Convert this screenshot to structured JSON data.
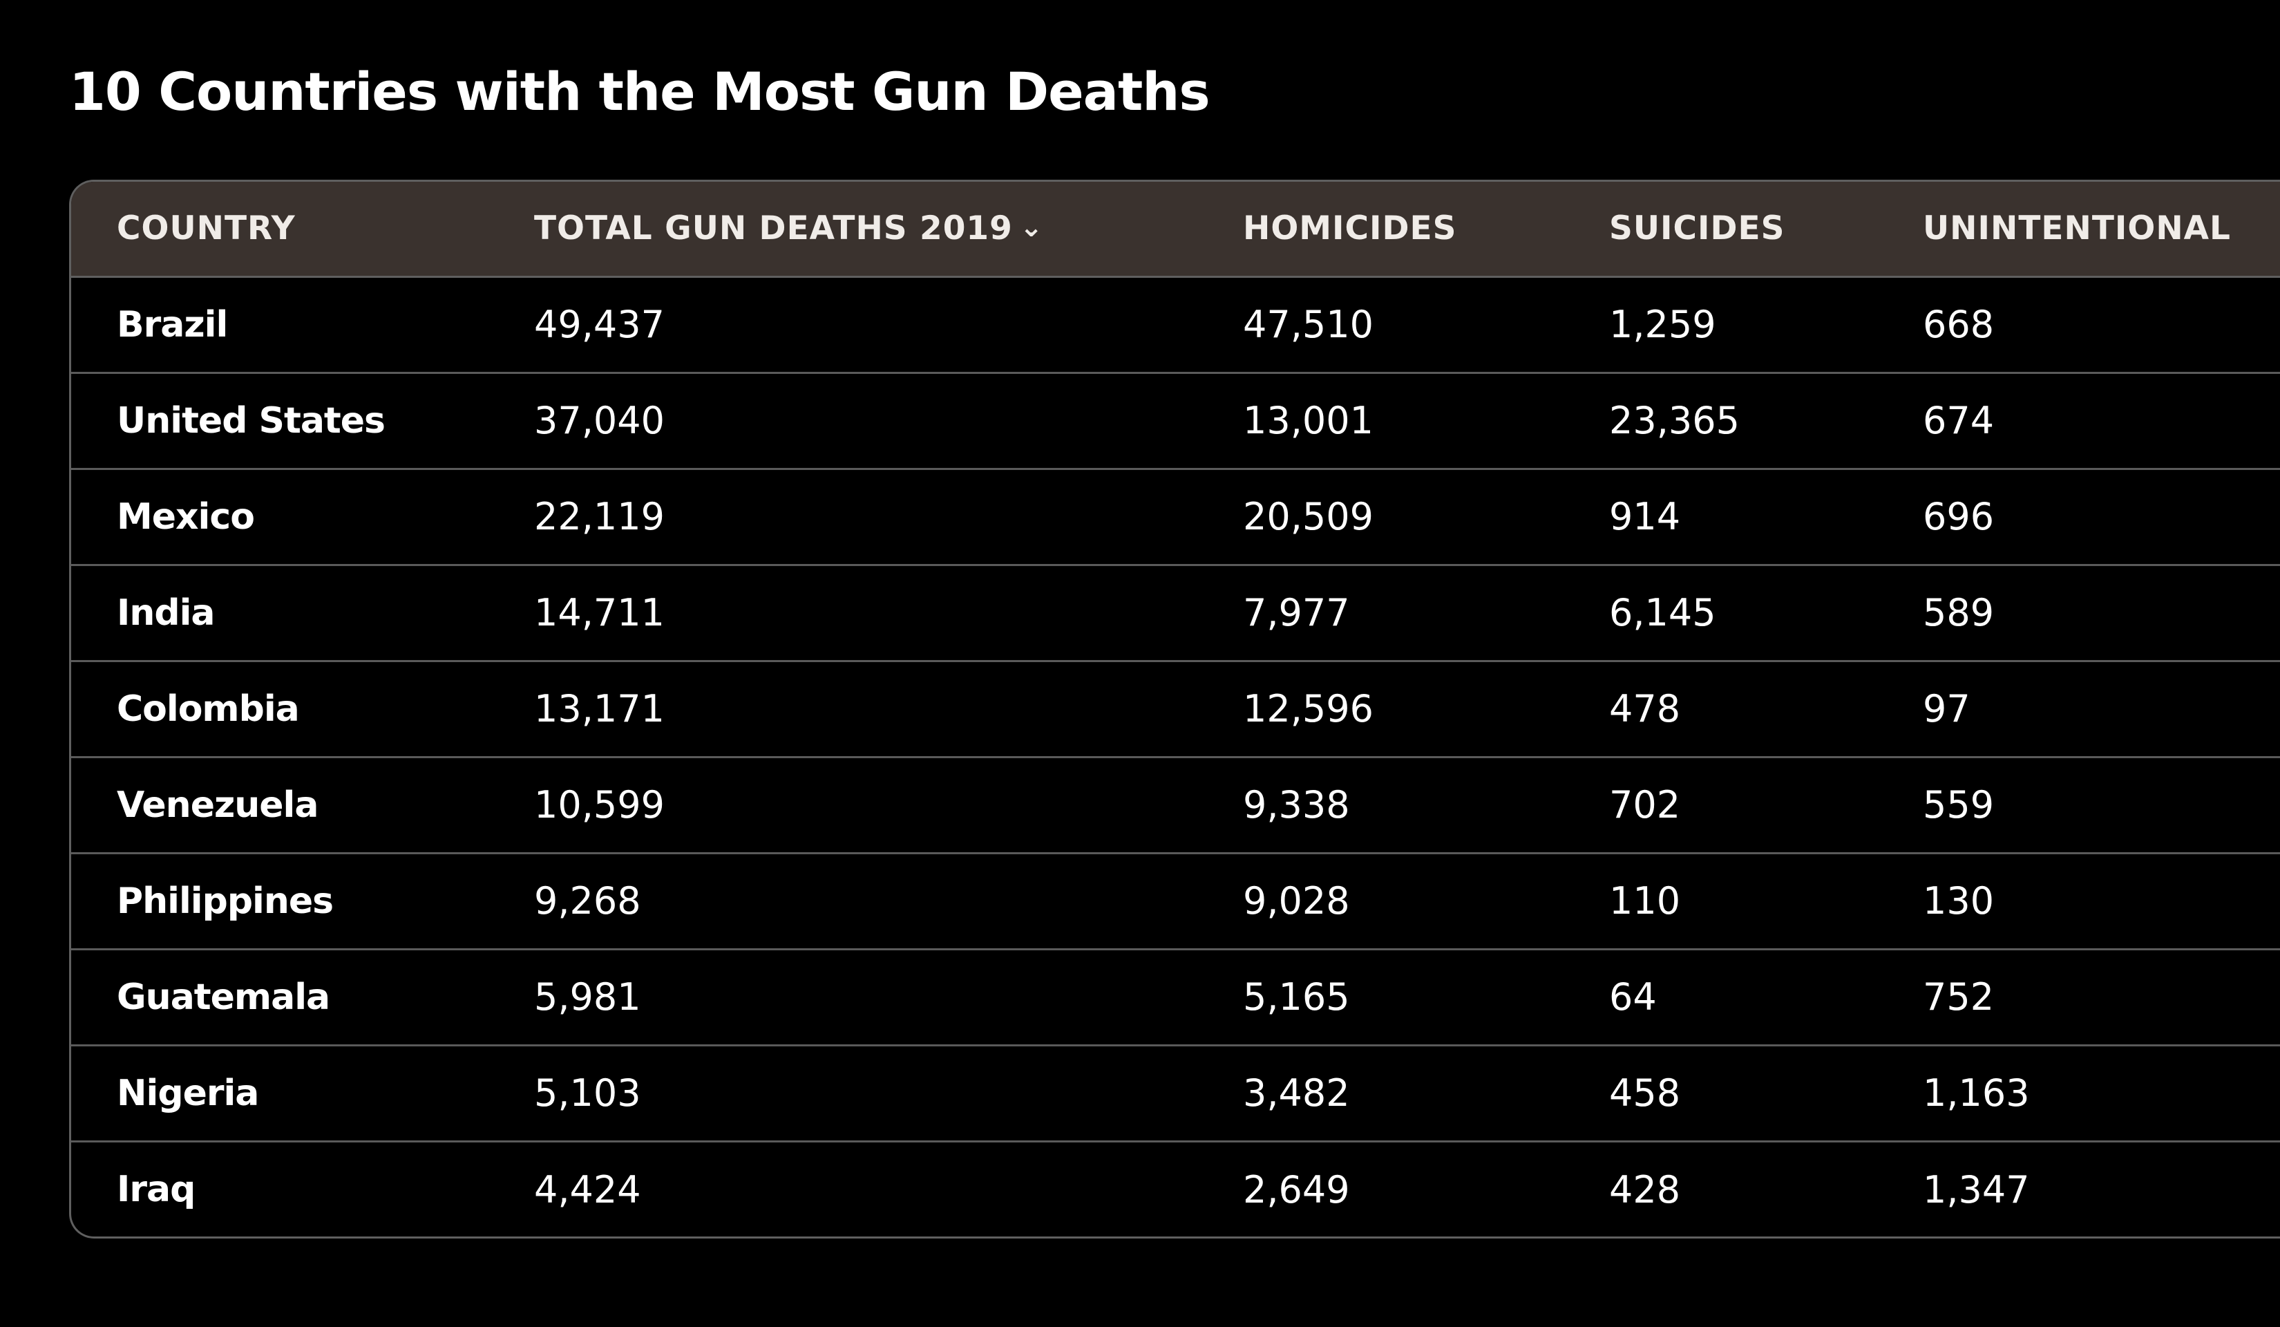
{
  "cut_off_text": "",
  "title": "10 Countries with the Most Gun Deaths",
  "colors": {
    "background": "#000000",
    "header_background": "#3a322e",
    "border": "#5f5f5f",
    "text": "#ffffff"
  },
  "table": {
    "headers": {
      "country": "COUNTRY",
      "total": "TOTAL GUN DEATHS 2019",
      "homicides": "HOMICIDES",
      "suicides": "SUICIDES",
      "unintentional": "UNINTENTIONAL"
    },
    "sort_icon": "chevron-down-icon",
    "rows": [
      {
        "country": "Brazil",
        "total": "49,437",
        "homicides": "47,510",
        "suicides": "1,259",
        "unintentional": "668"
      },
      {
        "country": "United States",
        "total": "37,040",
        "homicides": "13,001",
        "suicides": "23,365",
        "unintentional": "674"
      },
      {
        "country": "Mexico",
        "total": "22,119",
        "homicides": "20,509",
        "suicides": "914",
        "unintentional": "696"
      },
      {
        "country": "India",
        "total": "14,711",
        "homicides": "7,977",
        "suicides": "6,145",
        "unintentional": "589"
      },
      {
        "country": "Colombia",
        "total": "13,171",
        "homicides": "12,596",
        "suicides": "478",
        "unintentional": "97"
      },
      {
        "country": "Venezuela",
        "total": "10,599",
        "homicides": "9,338",
        "suicides": "702",
        "unintentional": "559"
      },
      {
        "country": "Philippines",
        "total": "9,268",
        "homicides": "9,028",
        "suicides": "110",
        "unintentional": "130"
      },
      {
        "country": "Guatemala",
        "total": "5,981",
        "homicides": "5,165",
        "suicides": "64",
        "unintentional": "752"
      },
      {
        "country": "Nigeria",
        "total": "5,103",
        "homicides": "3,482",
        "suicides": "458",
        "unintentional": "1,163"
      },
      {
        "country": "Iraq",
        "total": "4,424",
        "homicides": "2,649",
        "suicides": "428",
        "unintentional": "1,347"
      }
    ]
  }
}
